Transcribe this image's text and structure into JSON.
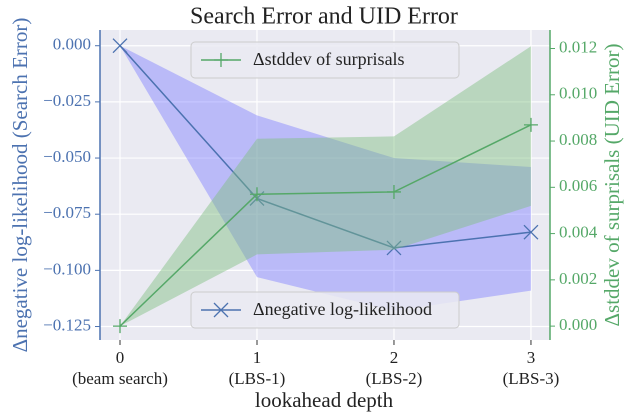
{
  "chart_data": {
    "type": "line",
    "title": "Search Error and UID Error",
    "x_label": "lookahead depth",
    "y_label": "Δnegative log-likelihood (Search Error)",
    "y2_label": "Δstddev of surprisals (UID Error)",
    "x": [
      0,
      1,
      2,
      3
    ],
    "xlim": [
      -0.146,
      3.139
    ],
    "xticks": [
      0,
      1,
      2,
      3
    ],
    "xtick_sublabels": [
      "(beam search)",
      "(LBS-1)",
      "(LBS-2)",
      "(LBS-3)"
    ],
    "ylim": [
      -0.131,
      0.007
    ],
    "yticks": [
      {
        "value": 0,
        "label": "0.000"
      },
      {
        "value": -0.025,
        "label": "−0.025"
      },
      {
        "value": -0.05,
        "label": "−0.050"
      },
      {
        "value": -0.075,
        "label": "−0.075"
      },
      {
        "value": -0.1,
        "label": "−0.100"
      },
      {
        "value": -0.125,
        "label": "−0.125"
      }
    ],
    "y2lim": [
      -0.0006,
      0.0128
    ],
    "y2ticks": [
      {
        "value": 0,
        "label": "0.000"
      },
      {
        "value": 0.002,
        "label": "0.002"
      },
      {
        "value": 0.004,
        "label": "0.004"
      },
      {
        "value": 0.006,
        "label": "0.006"
      },
      {
        "value": 0.008,
        "label": "0.008"
      },
      {
        "value": 0.01,
        "label": "0.010"
      },
      {
        "value": 0.012,
        "label": "0.012"
      }
    ],
    "grid": true,
    "series": [
      {
        "name": "Δnegative log-likelihood",
        "color": "#4c72b0",
        "band_color": "#8080ff",
        "marker": "x",
        "axis": "y",
        "legend": "lower center",
        "values": [
          0,
          -0.068,
          -0.09,
          -0.083
        ],
        "upper": [
          0,
          -0.031,
          -0.05,
          -0.054
        ],
        "lower": [
          0,
          -0.103,
          -0.118,
          -0.109
        ]
      },
      {
        "name": "Δstddev of surprisals",
        "color": "#55a868",
        "band_color": "#7fbf7f",
        "marker": "+",
        "axis": "y2",
        "legend": "upper center",
        "values": [
          0,
          0.0057,
          0.0058,
          0.0087
        ],
        "upper": [
          0,
          0.0081,
          0.0082,
          0.0121
        ],
        "lower": [
          0,
          0.0031,
          0.0033,
          0.0052
        ]
      }
    ]
  }
}
